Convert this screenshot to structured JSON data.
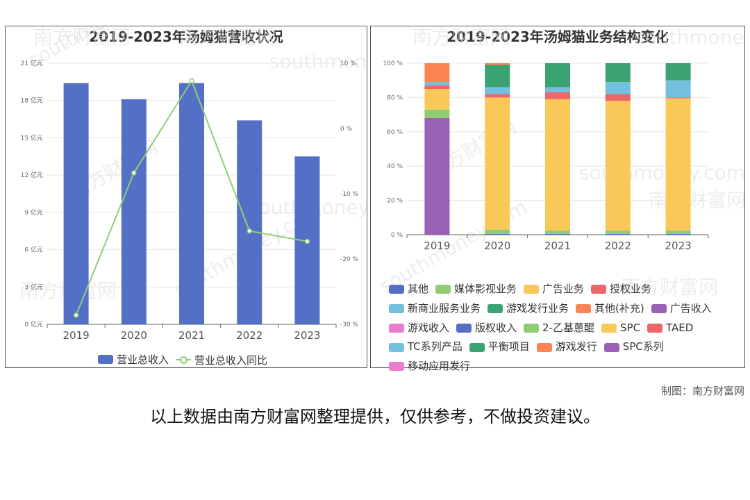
{
  "credit": "制图：南方财富网",
  "footer_note": "以上数据由南方财富网整理提供，仅供参考，不做投资建议。",
  "watermark": {
    "cn": "南方财富网",
    "en": "southmoney.com"
  },
  "chart_data": [
    {
      "type": "bar",
      "title": "2019-2023年汤姆猫营收状况",
      "categories": [
        "2019",
        "2020",
        "2021",
        "2022",
        "2023"
      ],
      "series": [
        {
          "name": "营业总收入",
          "type": "bar",
          "axis": "left",
          "color": "#5470c6",
          "values": [
            19.4,
            18.1,
            19.4,
            16.4,
            13.5
          ]
        },
        {
          "name": "营业总收入同比",
          "type": "line",
          "axis": "right",
          "color": "#91cc75",
          "values": [
            -28.6,
            -6.8,
            7.3,
            -15.7,
            -17.3
          ]
        }
      ],
      "y_left": {
        "min": 0,
        "max": 21,
        "ticks": [
          0,
          3,
          6,
          9,
          12,
          15,
          18,
          21
        ],
        "unit": "亿元"
      },
      "y_right": {
        "min": -30,
        "max": 10,
        "ticks": [
          -30,
          -20,
          -10,
          0,
          10
        ],
        "unit": "%"
      },
      "legend_position": "bottom"
    },
    {
      "type": "bar",
      "stacked": true,
      "title": "2019-2023年汤姆猫业务结构变化",
      "categories": [
        "2019",
        "2020",
        "2021",
        "2022",
        "2023"
      ],
      "y": {
        "min": 0,
        "max": 100,
        "ticks": [
          0,
          20,
          40,
          60,
          80,
          100
        ],
        "unit": "%"
      },
      "legend_position": "bottom",
      "series": [
        {
          "name": "其他",
          "color": "#5470c6",
          "values": [
            0,
            0.5,
            0.5,
            0.5,
            0.5
          ]
        },
        {
          "name": "媒体影视业务",
          "color": "#91cc75",
          "values": [
            0,
            2.5,
            2,
            2,
            2
          ]
        },
        {
          "name": "广告业务",
          "color": "#fac858",
          "values": [
            0,
            77,
            76.5,
            75.5,
            77
          ]
        },
        {
          "name": "授权业务",
          "color": "#ee6666",
          "values": [
            0,
            2,
            4,
            4,
            0.5
          ]
        },
        {
          "name": "新商业服务业务",
          "color": "#73c0de",
          "values": [
            0,
            4,
            3,
            7,
            10
          ]
        },
        {
          "name": "游戏发行业务",
          "color": "#3ba272",
          "values": [
            0,
            13,
            14,
            11,
            10
          ]
        },
        {
          "name": "其他(补充)",
          "color": "#fc8452",
          "values": [
            0,
            1,
            0,
            0,
            0
          ]
        },
        {
          "name": "广告收入",
          "color": "#9a60b4",
          "values": [
            68,
            0,
            0,
            0,
            0
          ]
        },
        {
          "name": "游戏收入",
          "color": "#ea7ccc",
          "values": [
            0,
            0,
            0,
            0,
            0
          ]
        },
        {
          "name": "版权收入",
          "color": "#5470c6",
          "values": [
            0,
            0,
            0,
            0,
            0
          ]
        },
        {
          "name": "2-乙基蒽醌",
          "color": "#91cc75",
          "values": [
            5,
            0,
            0,
            0,
            0
          ]
        },
        {
          "name": "SPC",
          "color": "#fac858",
          "values": [
            12,
            0,
            0,
            0,
            0
          ]
        },
        {
          "name": "TAED",
          "color": "#ee6666",
          "values": [
            2,
            0,
            0,
            0,
            0
          ]
        },
        {
          "name": "TC系列产品",
          "color": "#73c0de",
          "values": [
            2,
            0,
            0,
            0,
            0
          ]
        },
        {
          "name": "平衡项目",
          "color": "#3ba272",
          "values": [
            0,
            0,
            0,
            0,
            0
          ]
        },
        {
          "name": "游戏发行",
          "color": "#fc8452",
          "values": [
            11,
            0,
            0,
            0,
            0
          ]
        },
        {
          "name": "SPC系列",
          "color": "#9a60b4",
          "values": [
            0,
            0,
            0,
            0,
            0
          ]
        },
        {
          "name": "移动应用发行",
          "color": "#ea7ccc",
          "values": [
            0,
            0,
            0,
            0,
            0
          ]
        }
      ]
    }
  ]
}
